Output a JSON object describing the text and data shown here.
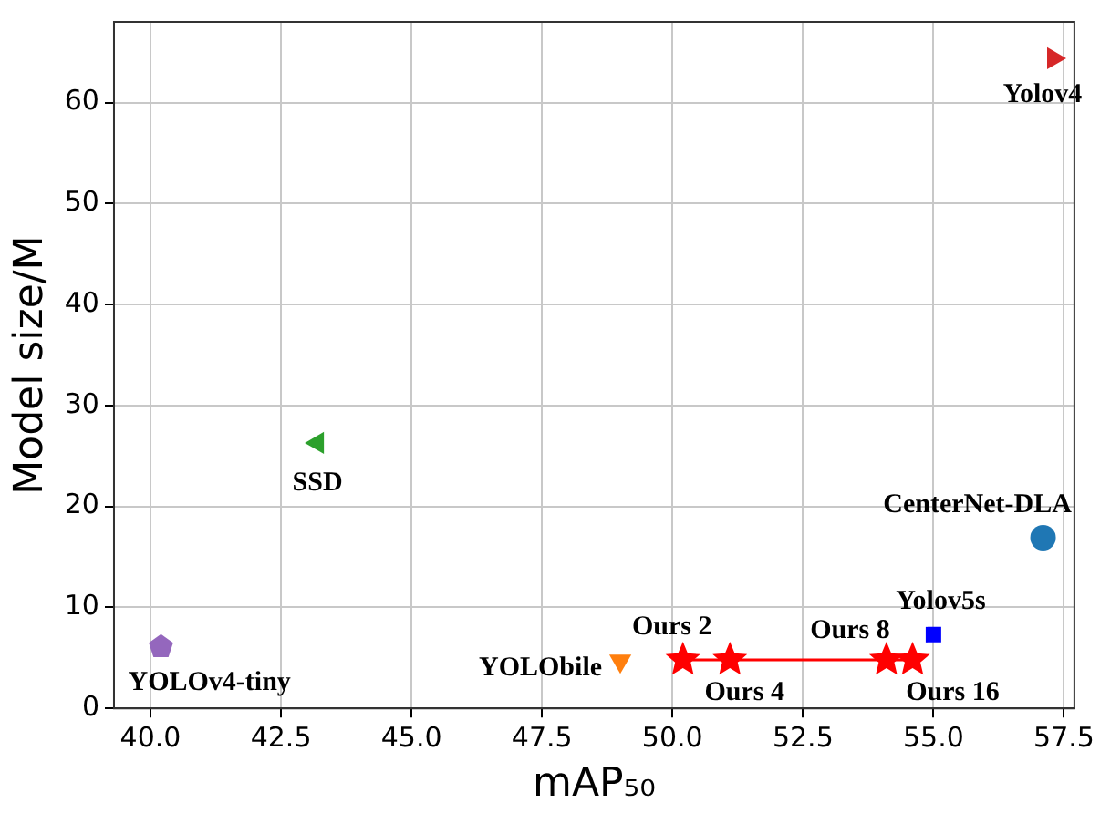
{
  "chart_data": {
    "type": "scatter",
    "xlabel": "mAP₅₀",
    "ylabel": "Model size/M",
    "xlim": [
      39.3,
      57.7
    ],
    "ylim": [
      0,
      68
    ],
    "xticks": [
      {
        "value": 40,
        "label": "40.0"
      },
      {
        "value": 42.5,
        "label": "42.5"
      },
      {
        "value": 45,
        "label": "45.0"
      },
      {
        "value": 47.5,
        "label": "47.5"
      },
      {
        "value": 50,
        "label": "50.0"
      },
      {
        "value": 52.5,
        "label": "52.5"
      },
      {
        "value": 55,
        "label": "55.0"
      },
      {
        "value": 57.5,
        "label": "57.5"
      }
    ],
    "yticks": [
      0,
      10,
      20,
      30,
      40,
      50,
      60
    ],
    "grid": true,
    "legend": false,
    "series": [
      {
        "x": [
          40.2
        ],
        "values": [
          6.1
        ],
        "color": "#9467bd"
      },
      {
        "x": [
          43.2
        ],
        "values": [
          26.3
        ],
        "color": "#2ca02c",
        "marker": "triangle-left"
      },
      {
        "x": [
          49.0
        ],
        "values": [
          4.7
        ],
        "color": "#ff7f0e",
        "marker": "triangle-down"
      },
      {
        "type": "line",
        "x": [
          50.2,
          51.1,
          54.1,
          54.6
        ],
        "values": [
          4.8,
          4.8,
          4.8,
          4.8
        ],
        "color": "#ff0000",
        "marker": "star"
      },
      {
        "x": [
          55.0
        ],
        "values": [
          7.3
        ],
        "color": "#0000ff",
        "marker": "square"
      },
      {
        "x": [
          57.1
        ],
        "values": [
          16.9
        ],
        "color": "#1f77b4",
        "marker": "circle"
      },
      {
        "x": [
          57.3
        ],
        "values": [
          64.4
        ],
        "color": "#d62728",
        "marker": "triangle-right"
      }
    ],
    "annotations": [
      {
        "text": "YOLOv4-tiny",
        "x": 40.2,
        "y": 6.1
      },
      {
        "text": "SSD",
        "x": 43.2,
        "y": 26.3
      },
      {
        "text": "YOLObile",
        "x": 49.0,
        "y": 4.7
      },
      {
        "text": "Ours 2",
        "x": 50.2,
        "y": 4.8
      },
      {
        "text": "Ours 4",
        "x": 51.1,
        "y": 4.8
      },
      {
        "text": "Ours 8",
        "x": 54.1,
        "y": 4.8
      },
      {
        "text": "Ours 16",
        "x": 54.6,
        "y": 4.8
      },
      {
        "text": "Yolov5s",
        "x": 55.0,
        "y": 7.3
      },
      {
        "text": "CenterNet-DLA",
        "x": 57.1,
        "y": 16.9
      },
      {
        "text": "Yolov4",
        "x": 57.3,
        "y": 64.4
      }
    ]
  }
}
